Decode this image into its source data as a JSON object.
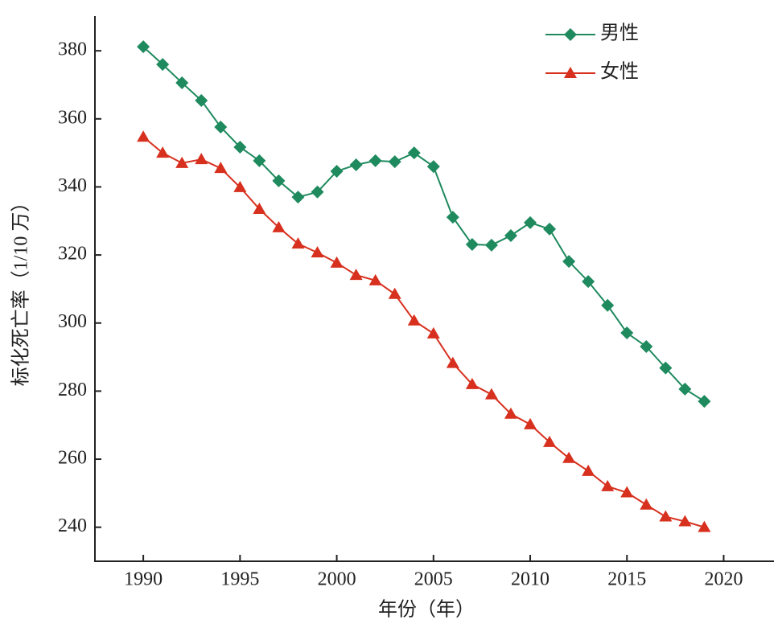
{
  "chart_data": {
    "type": "line",
    "xlabel": "年份（年）",
    "ylabel": "标化死亡率（1/10 万）",
    "x": [
      1990,
      1991,
      1992,
      1993,
      1994,
      1995,
      1996,
      1997,
      1998,
      1999,
      2000,
      2001,
      2002,
      2003,
      2004,
      2005,
      2006,
      2007,
      2008,
      2009,
      2010,
      2011,
      2012,
      2013,
      2014,
      2015,
      2016,
      2017,
      2018,
      2019
    ],
    "series": [
      {
        "name": "男性",
        "color": "#1e8a5e",
        "marker": "diamond",
        "values": [
          381.2,
          376,
          370.6,
          365.4,
          357.6,
          351.7,
          347.7,
          341.8,
          337,
          338.5,
          344.6,
          346.5,
          347.7,
          347.4,
          350,
          346,
          331.1,
          323.1,
          322.9,
          325.7,
          329.5,
          327.6,
          318.1,
          312.2,
          305.2,
          297.1,
          293.1,
          286.8,
          280.6,
          277
        ]
      },
      {
        "name": "女性",
        "color": "#d8301e",
        "marker": "triangle",
        "values": [
          354.7,
          350,
          347,
          348.1,
          345.5,
          339.9,
          333.5,
          328.1,
          323.3,
          320.7,
          317.7,
          314.1,
          312.5,
          308.5,
          300.7,
          296.9,
          288.2,
          282,
          279,
          273.3,
          270.2,
          265,
          260.3,
          256.5,
          252,
          250.2,
          246.6,
          243.1,
          241.7,
          240
        ]
      }
    ],
    "xlim": [
      1987.5,
      2022.6
    ],
    "xticks": [
      1990,
      1995,
      2000,
      2005,
      2010,
      2015,
      2020
    ],
    "ylim": [
      230,
      390.2
    ],
    "yticks": [
      240,
      260,
      280,
      300,
      320,
      340,
      360,
      380
    ],
    "legend": "upper right"
  }
}
